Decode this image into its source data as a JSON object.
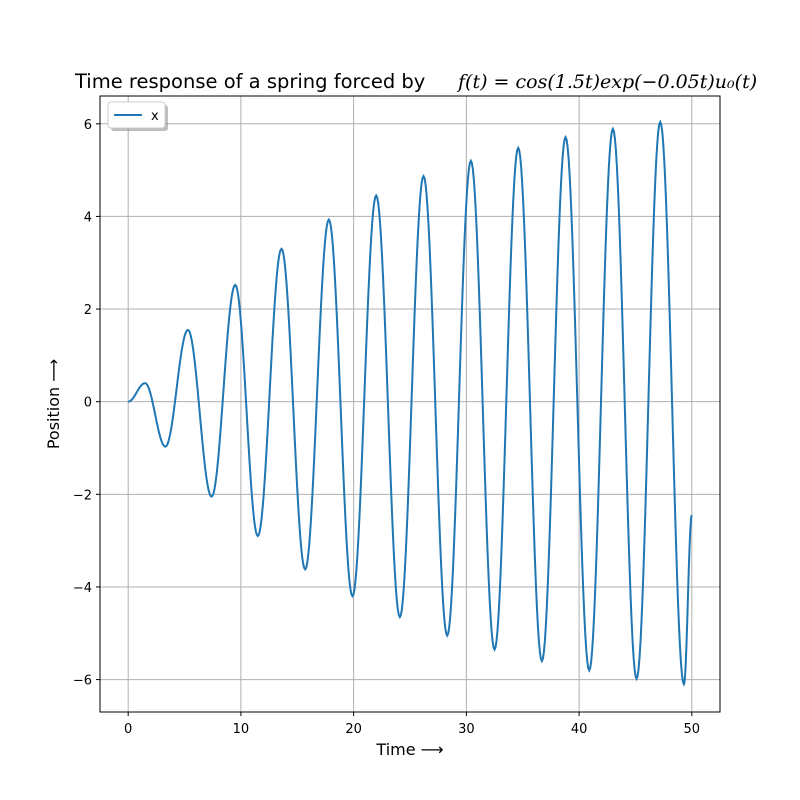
{
  "chart_data": {
    "type": "line",
    "title": "Time response of a spring forced by",
    "title_math": "f(t) = cos(1.5t)exp(−0.05t)u₀(t)",
    "xlabel": "Time ⟶",
    "ylabel": "Position ⟶",
    "xlim": [
      -2.5,
      52.5
    ],
    "ylim": [
      -6.7,
      6.6
    ],
    "x_ticks": [
      0,
      10,
      20,
      30,
      40,
      50
    ],
    "x_tick_labels": [
      "0",
      "10",
      "20",
      "30",
      "40",
      "50"
    ],
    "y_ticks": [
      -6,
      -4,
      -2,
      0,
      2,
      4,
      6
    ],
    "y_tick_labels": [
      "−6",
      "−4",
      "−2",
      "0",
      "2",
      "4",
      "6"
    ],
    "grid": true,
    "legend_position": "top-left",
    "series": [
      {
        "name": "x",
        "color": "#1f77b4",
        "points": [
          [
            0,
            0.0
          ],
          [
            1.5,
            0.4
          ],
          [
            3.3,
            -0.97
          ],
          [
            5.3,
            1.55
          ],
          [
            7.4,
            -2.05
          ],
          [
            9.5,
            2.52
          ],
          [
            11.5,
            -2.9
          ],
          [
            13.6,
            3.3
          ],
          [
            15.7,
            -3.62
          ],
          [
            17.8,
            3.93
          ],
          [
            19.9,
            -4.2
          ],
          [
            22.0,
            4.45
          ],
          [
            24.1,
            -4.65
          ],
          [
            26.2,
            4.87
          ],
          [
            28.3,
            -5.05
          ],
          [
            30.4,
            5.2
          ],
          [
            32.5,
            -5.35
          ],
          [
            34.6,
            5.48
          ],
          [
            36.7,
            -5.6
          ],
          [
            38.8,
            5.71
          ],
          [
            40.9,
            -5.8
          ],
          [
            43.0,
            5.89
          ],
          [
            45.1,
            -5.98
          ],
          [
            47.2,
            6.04
          ],
          [
            49.3,
            -6.1
          ],
          [
            50.0,
            -2.45
          ]
        ]
      }
    ]
  }
}
